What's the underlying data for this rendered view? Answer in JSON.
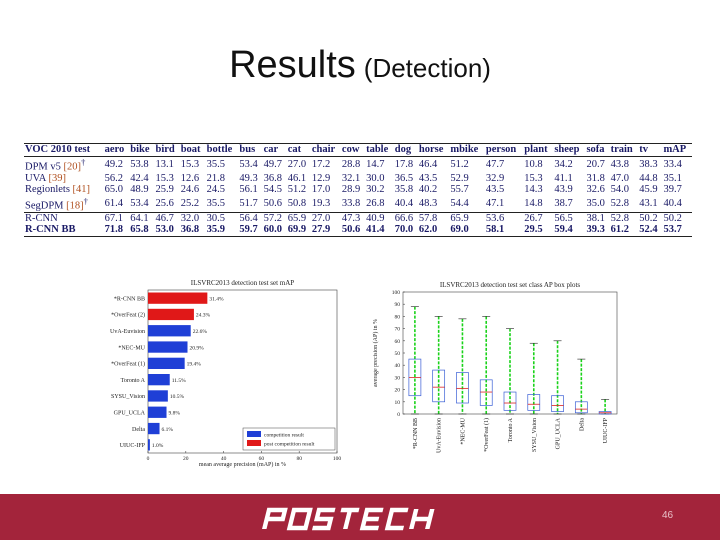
{
  "slide": {
    "title": "Results",
    "title_suffix": "(Detection)",
    "page_number": "46",
    "logo_text": "POSTECH"
  },
  "table": {
    "headers": [
      "VOC 2010 test",
      "aero",
      "bike",
      "bird",
      "boat",
      "bottle",
      "bus",
      "car",
      "cat",
      "chair",
      "cow",
      "table",
      "dog",
      "horse",
      "mbike",
      "person",
      "plant",
      "sheep",
      "sofa",
      "train",
      "tv",
      "mAP"
    ],
    "rows": [
      {
        "method": "DPM v5",
        "ref": "[20]",
        "sup": "†",
        "values": [
          "49.2",
          "53.8",
          "13.1",
          "15.3",
          "35.5",
          "53.4",
          "49.7",
          "27.0",
          "17.2",
          "28.8",
          "14.7",
          "17.8",
          "46.4",
          "51.2",
          "47.7",
          "10.8",
          "34.2",
          "20.7",
          "43.8",
          "38.3",
          "33.4"
        ]
      },
      {
        "method": "UVA",
        "ref": "[39]",
        "sup": "",
        "values": [
          "56.2",
          "42.4",
          "15.3",
          "12.6",
          "21.8",
          "49.3",
          "36.8",
          "46.1",
          "12.9",
          "32.1",
          "30.0",
          "36.5",
          "43.5",
          "52.9",
          "32.9",
          "15.3",
          "41.1",
          "31.8",
          "47.0",
          "44.8",
          "35.1"
        ]
      },
      {
        "method": "Regionlets",
        "ref": "[41]",
        "sup": "",
        "values": [
          "65.0",
          "48.9",
          "25.9",
          "24.6",
          "24.5",
          "56.1",
          "54.5",
          "51.2",
          "17.0",
          "28.9",
          "30.2",
          "35.8",
          "40.2",
          "55.7",
          "43.5",
          "14.3",
          "43.9",
          "32.6",
          "54.0",
          "45.9",
          "39.7"
        ]
      },
      {
        "method": "SegDPM",
        "ref": "[18]",
        "sup": "†",
        "values": [
          "61.4",
          "53.4",
          "25.6",
          "25.2",
          "35.5",
          "51.7",
          "50.6",
          "50.8",
          "19.3",
          "33.8",
          "26.8",
          "40.4",
          "48.3",
          "54.4",
          "47.1",
          "14.8",
          "38.7",
          "35.0",
          "52.8",
          "43.1",
          "40.4"
        ]
      },
      {
        "method": "R-CNN",
        "ref": "",
        "sup": "",
        "values": [
          "67.1",
          "64.1",
          "46.7",
          "32.0",
          "30.5",
          "56.4",
          "57.2",
          "65.9",
          "27.0",
          "47.3",
          "40.9",
          "66.6",
          "57.8",
          "65.9",
          "53.6",
          "26.7",
          "56.5",
          "38.1",
          "52.8",
          "50.2",
          "50.2"
        ]
      },
      {
        "method": "R-CNN BB",
        "ref": "",
        "sup": "",
        "values": [
          "71.8",
          "65.8",
          "53.0",
          "36.8",
          "35.9",
          "59.7",
          "60.0",
          "69.9",
          "27.9",
          "50.6",
          "41.4",
          "70.0",
          "62.0",
          "69.0",
          "58.1",
          "29.5",
          "59.4",
          "39.3",
          "61.2",
          "52.4",
          "53.7"
        ]
      }
    ]
  },
  "chart_data": [
    {
      "type": "bar",
      "orientation": "horizontal",
      "title": "ILSVRC2013 detection test set mAP",
      "xlabel": "mean average precision (mAP) in %",
      "categories": [
        "*R-CNN BB",
        "*OverFeat (2)",
        "UvA-Euvision",
        "*NEC-MU",
        "*OverFeat (1)",
        "Toronto A",
        "SYSU_Vision",
        "GPU_UCLA",
        "Delta",
        "UIUC-IFP"
      ],
      "values": [
        31.4,
        24.3,
        22.6,
        20.9,
        19.4,
        11.5,
        10.5,
        9.8,
        6.1,
        1.0
      ],
      "value_labels": [
        "31.4%",
        "24.3%",
        "22.6%",
        "20.9%",
        "19.4%",
        "11.5%",
        "10.5%",
        "9.8%",
        "6.1%",
        "1.0%"
      ],
      "post_competition": [
        true,
        true,
        false,
        false,
        false,
        false,
        false,
        false,
        false,
        false
      ],
      "xlim": [
        0,
        100
      ],
      "xticks": [
        "0",
        "20",
        "40",
        "60",
        "80",
        "100"
      ],
      "legend": [
        "competition result",
        "post competition result"
      ],
      "legend_position": "bottom-right",
      "colors": {
        "competition": "#1f3fd6",
        "post_competition": "#e01818"
      }
    },
    {
      "type": "box",
      "title": "ILSVRC2013 detection test set class AP box plots",
      "ylabel": "average precision (AP) in %",
      "yticks": [
        "0",
        "10",
        "20",
        "30",
        "40",
        "50",
        "60",
        "70",
        "80",
        "90",
        "100"
      ],
      "ylim": [
        0,
        100
      ],
      "categories": [
        "*R-CNN BB",
        "UvA-Euvision",
        "*NEC-MU",
        "*OverFeat (1)",
        "Toronto A",
        "SYSU_Vision",
        "GPU_UCLA",
        "Delta",
        "UIUC-IFP"
      ],
      "boxes": [
        {
          "whisker_high": 88,
          "q3": 45,
          "median": 30,
          "q1": 15,
          "whisker_low": 0
        },
        {
          "whisker_high": 80,
          "q3": 36,
          "median": 22,
          "q1": 10,
          "whisker_low": 0
        },
        {
          "whisker_high": 78,
          "q3": 34,
          "median": 21,
          "q1": 9,
          "whisker_low": 0
        },
        {
          "whisker_high": 80,
          "q3": 28,
          "median": 18,
          "q1": 7,
          "whisker_low": 0
        },
        {
          "whisker_high": 70,
          "q3": 18,
          "median": 9,
          "q1": 3,
          "whisker_low": 0
        },
        {
          "whisker_high": 58,
          "q3": 16,
          "median": 8,
          "q1": 3,
          "whisker_low": 0
        },
        {
          "whisker_high": 60,
          "q3": 15,
          "median": 7,
          "q1": 2,
          "whisker_low": 0
        },
        {
          "whisker_high": 45,
          "q3": 10,
          "median": 4,
          "q1": 1,
          "whisker_low": 0
        },
        {
          "whisker_high": 12,
          "q3": 2,
          "median": 1,
          "q1": 0,
          "whisker_low": 0
        }
      ],
      "colors": {
        "whisker": "#19d219",
        "box": "#3a5fd6"
      }
    }
  ]
}
